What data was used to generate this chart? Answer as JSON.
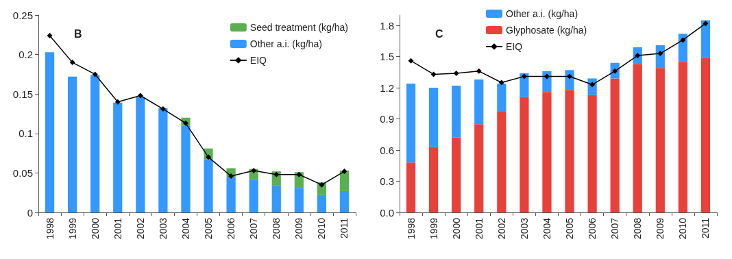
{
  "chart_data": [
    {
      "type": "bar",
      "title": "B",
      "stacked": true,
      "categories": [
        "1998",
        "1999",
        "2000",
        "2001",
        "2002",
        "2003",
        "2004",
        "2005",
        "2006",
        "2007",
        "2008",
        "2009",
        "2010",
        "2011"
      ],
      "series": [
        {
          "name": "Other a.i. (kg/ha)",
          "color": "#3399ff",
          "values": [
            0.203,
            0.172,
            0.174,
            0.139,
            0.146,
            0.132,
            0.11,
            0.067,
            0.045,
            0.041,
            0.034,
            0.031,
            0.022,
            0.027
          ]
        },
        {
          "name": "Seed treatment (kg/ha)",
          "color": "#5aaf50",
          "values": [
            0,
            0,
            0,
            0,
            0,
            0,
            0.01,
            0.014,
            0.011,
            0.014,
            0.018,
            0.02,
            0.016,
            0.026
          ]
        },
        {
          "name": "EIQ",
          "type": "line",
          "color": "#000000",
          "values": [
            0.224,
            0.19,
            0.175,
            0.14,
            0.148,
            0.131,
            0.113,
            0.07,
            0.046,
            0.053,
            0.048,
            0.048,
            0.035,
            0.052
          ]
        }
      ],
      "ylim": [
        0,
        0.25
      ],
      "yticks": [
        0,
        0.05,
        0.1,
        0.15,
        0.2,
        0.25
      ],
      "legend": "top right",
      "marker": "diamond",
      "grid": false
    },
    {
      "type": "bar",
      "title": "C",
      "stacked": true,
      "categories": [
        "1998",
        "1999",
        "2000",
        "2001",
        "2002",
        "2003",
        "2004",
        "2005",
        "2006",
        "2007",
        "2008",
        "2009",
        "2010",
        "2011"
      ],
      "series": [
        {
          "name": "Glyphosate (kg/ha)",
          "color": "#e8413a",
          "values": [
            0.48,
            0.63,
            0.72,
            0.85,
            0.97,
            1.11,
            1.16,
            1.18,
            1.13,
            1.29,
            1.43,
            1.39,
            1.45,
            1.49
          ]
        },
        {
          "name": "Other a.i. (kg/ha)",
          "color": "#3399ff",
          "values": [
            0.76,
            0.57,
            0.5,
            0.43,
            0.27,
            0.23,
            0.2,
            0.19,
            0.16,
            0.15,
            0.16,
            0.22,
            0.27,
            0.36
          ]
        },
        {
          "name": "EIQ",
          "type": "line",
          "color": "#000000",
          "values": [
            1.46,
            1.33,
            1.34,
            1.36,
            1.25,
            1.31,
            1.31,
            1.31,
            1.23,
            1.36,
            1.51,
            1.53,
            1.66,
            1.82
          ]
        }
      ],
      "ylim": [
        0,
        1.9
      ],
      "yticks": [
        {
          "value": 0,
          "label": "0.0"
        },
        0.3,
        0.6,
        0.9,
        1.2,
        1.5,
        1.8
      ],
      "legend": "top",
      "marker": "diamond",
      "grid": false
    }
  ]
}
